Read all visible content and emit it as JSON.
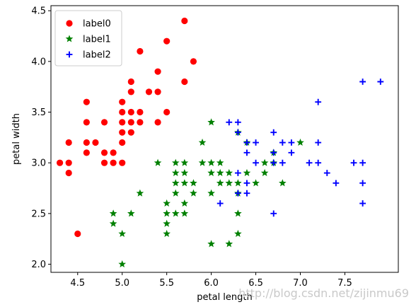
{
  "chart_data": {
    "type": "scatter",
    "title": "",
    "xlabel": "petal length",
    "ylabel": "petal width",
    "xlim": [
      4.2,
      8.1
    ],
    "ylim": [
      1.92,
      4.55
    ],
    "x_ticks": [
      4.5,
      5.0,
      5.5,
      6.0,
      6.5,
      7.0,
      7.5
    ],
    "y_ticks": [
      2.0,
      2.5,
      3.0,
      3.5,
      4.0,
      4.5
    ],
    "grid": false,
    "legend_position": "top-left",
    "series": [
      {
        "name": "label0",
        "marker": "circle",
        "color": "#ff0000",
        "points": [
          [
            4.3,
            3.0
          ],
          [
            4.4,
            2.9
          ],
          [
            4.4,
            3.0
          ],
          [
            4.4,
            3.2
          ],
          [
            4.5,
            2.3
          ],
          [
            4.6,
            3.1
          ],
          [
            4.6,
            3.2
          ],
          [
            4.6,
            3.4
          ],
          [
            4.6,
            3.6
          ],
          [
            4.7,
            3.2
          ],
          [
            4.8,
            3.0
          ],
          [
            4.8,
            3.1
          ],
          [
            4.8,
            3.4
          ],
          [
            4.9,
            3.0
          ],
          [
            4.9,
            3.1
          ],
          [
            5.0,
            3.0
          ],
          [
            5.0,
            3.2
          ],
          [
            5.0,
            3.3
          ],
          [
            5.0,
            3.4
          ],
          [
            5.0,
            3.5
          ],
          [
            5.0,
            3.6
          ],
          [
            5.1,
            3.3
          ],
          [
            5.1,
            3.4
          ],
          [
            5.1,
            3.5
          ],
          [
            5.1,
            3.7
          ],
          [
            5.1,
            3.8
          ],
          [
            5.2,
            3.4
          ],
          [
            5.2,
            3.5
          ],
          [
            5.2,
            4.1
          ],
          [
            5.3,
            3.7
          ],
          [
            5.4,
            3.4
          ],
          [
            5.4,
            3.7
          ],
          [
            5.4,
            3.9
          ],
          [
            5.5,
            3.5
          ],
          [
            5.5,
            4.2
          ],
          [
            5.7,
            3.8
          ],
          [
            5.7,
            4.4
          ],
          [
            5.8,
            4.0
          ]
        ]
      },
      {
        "name": "label1",
        "marker": "star",
        "color": "#008000",
        "points": [
          [
            4.9,
            2.4
          ],
          [
            4.9,
            2.5
          ],
          [
            5.0,
            2.0
          ],
          [
            5.0,
            2.3
          ],
          [
            5.1,
            2.5
          ],
          [
            5.2,
            2.7
          ],
          [
            5.4,
            3.0
          ],
          [
            5.5,
            2.3
          ],
          [
            5.5,
            2.4
          ],
          [
            5.5,
            2.5
          ],
          [
            5.5,
            2.6
          ],
          [
            5.6,
            2.5
          ],
          [
            5.6,
            2.7
          ],
          [
            5.6,
            2.8
          ],
          [
            5.6,
            2.9
          ],
          [
            5.6,
            3.0
          ],
          [
            5.7,
            2.5
          ],
          [
            5.7,
            2.6
          ],
          [
            5.7,
            2.8
          ],
          [
            5.7,
            2.9
          ],
          [
            5.7,
            3.0
          ],
          [
            5.8,
            2.7
          ],
          [
            5.8,
            2.8
          ],
          [
            5.9,
            3.0
          ],
          [
            5.9,
            3.2
          ],
          [
            6.0,
            2.2
          ],
          [
            6.0,
            2.7
          ],
          [
            6.0,
            2.9
          ],
          [
            6.0,
            3.0
          ],
          [
            6.0,
            3.4
          ],
          [
            6.1,
            2.8
          ],
          [
            6.1,
            2.9
          ],
          [
            6.1,
            3.0
          ],
          [
            6.2,
            2.2
          ],
          [
            6.2,
            2.8
          ],
          [
            6.2,
            2.9
          ],
          [
            6.3,
            2.3
          ],
          [
            6.3,
            2.5
          ],
          [
            6.3,
            2.7
          ],
          [
            6.3,
            2.8
          ],
          [
            6.3,
            3.3
          ],
          [
            6.4,
            2.9
          ],
          [
            6.4,
            3.2
          ],
          [
            6.5,
            2.8
          ],
          [
            6.6,
            2.9
          ],
          [
            6.6,
            3.0
          ],
          [
            6.7,
            3.0
          ],
          [
            6.7,
            3.1
          ],
          [
            6.8,
            2.8
          ],
          [
            7.0,
            3.2
          ]
        ]
      },
      {
        "name": "label2",
        "marker": "plus",
        "color": "#0000ff",
        "points": [
          [
            6.1,
            2.6
          ],
          [
            6.2,
            3.4
          ],
          [
            6.3,
            2.7
          ],
          [
            6.3,
            2.9
          ],
          [
            6.3,
            3.3
          ],
          [
            6.3,
            3.4
          ],
          [
            6.4,
            2.7
          ],
          [
            6.4,
            2.8
          ],
          [
            6.4,
            3.1
          ],
          [
            6.4,
            3.2
          ],
          [
            6.5,
            3.0
          ],
          [
            6.5,
            3.2
          ],
          [
            6.7,
            2.5
          ],
          [
            6.7,
            3.0
          ],
          [
            6.7,
            3.1
          ],
          [
            6.7,
            3.3
          ],
          [
            6.8,
            3.0
          ],
          [
            6.8,
            3.2
          ],
          [
            6.9,
            3.1
          ],
          [
            6.9,
            3.2
          ],
          [
            7.1,
            3.0
          ],
          [
            7.2,
            3.0
          ],
          [
            7.2,
            3.2
          ],
          [
            7.2,
            3.6
          ],
          [
            7.3,
            2.9
          ],
          [
            7.4,
            2.8
          ],
          [
            7.6,
            3.0
          ],
          [
            7.7,
            2.6
          ],
          [
            7.7,
            2.8
          ],
          [
            7.7,
            3.0
          ],
          [
            7.7,
            3.8
          ],
          [
            7.9,
            3.8
          ]
        ]
      }
    ]
  },
  "watermark": "http://blog.csdn.net/zijinmu69"
}
